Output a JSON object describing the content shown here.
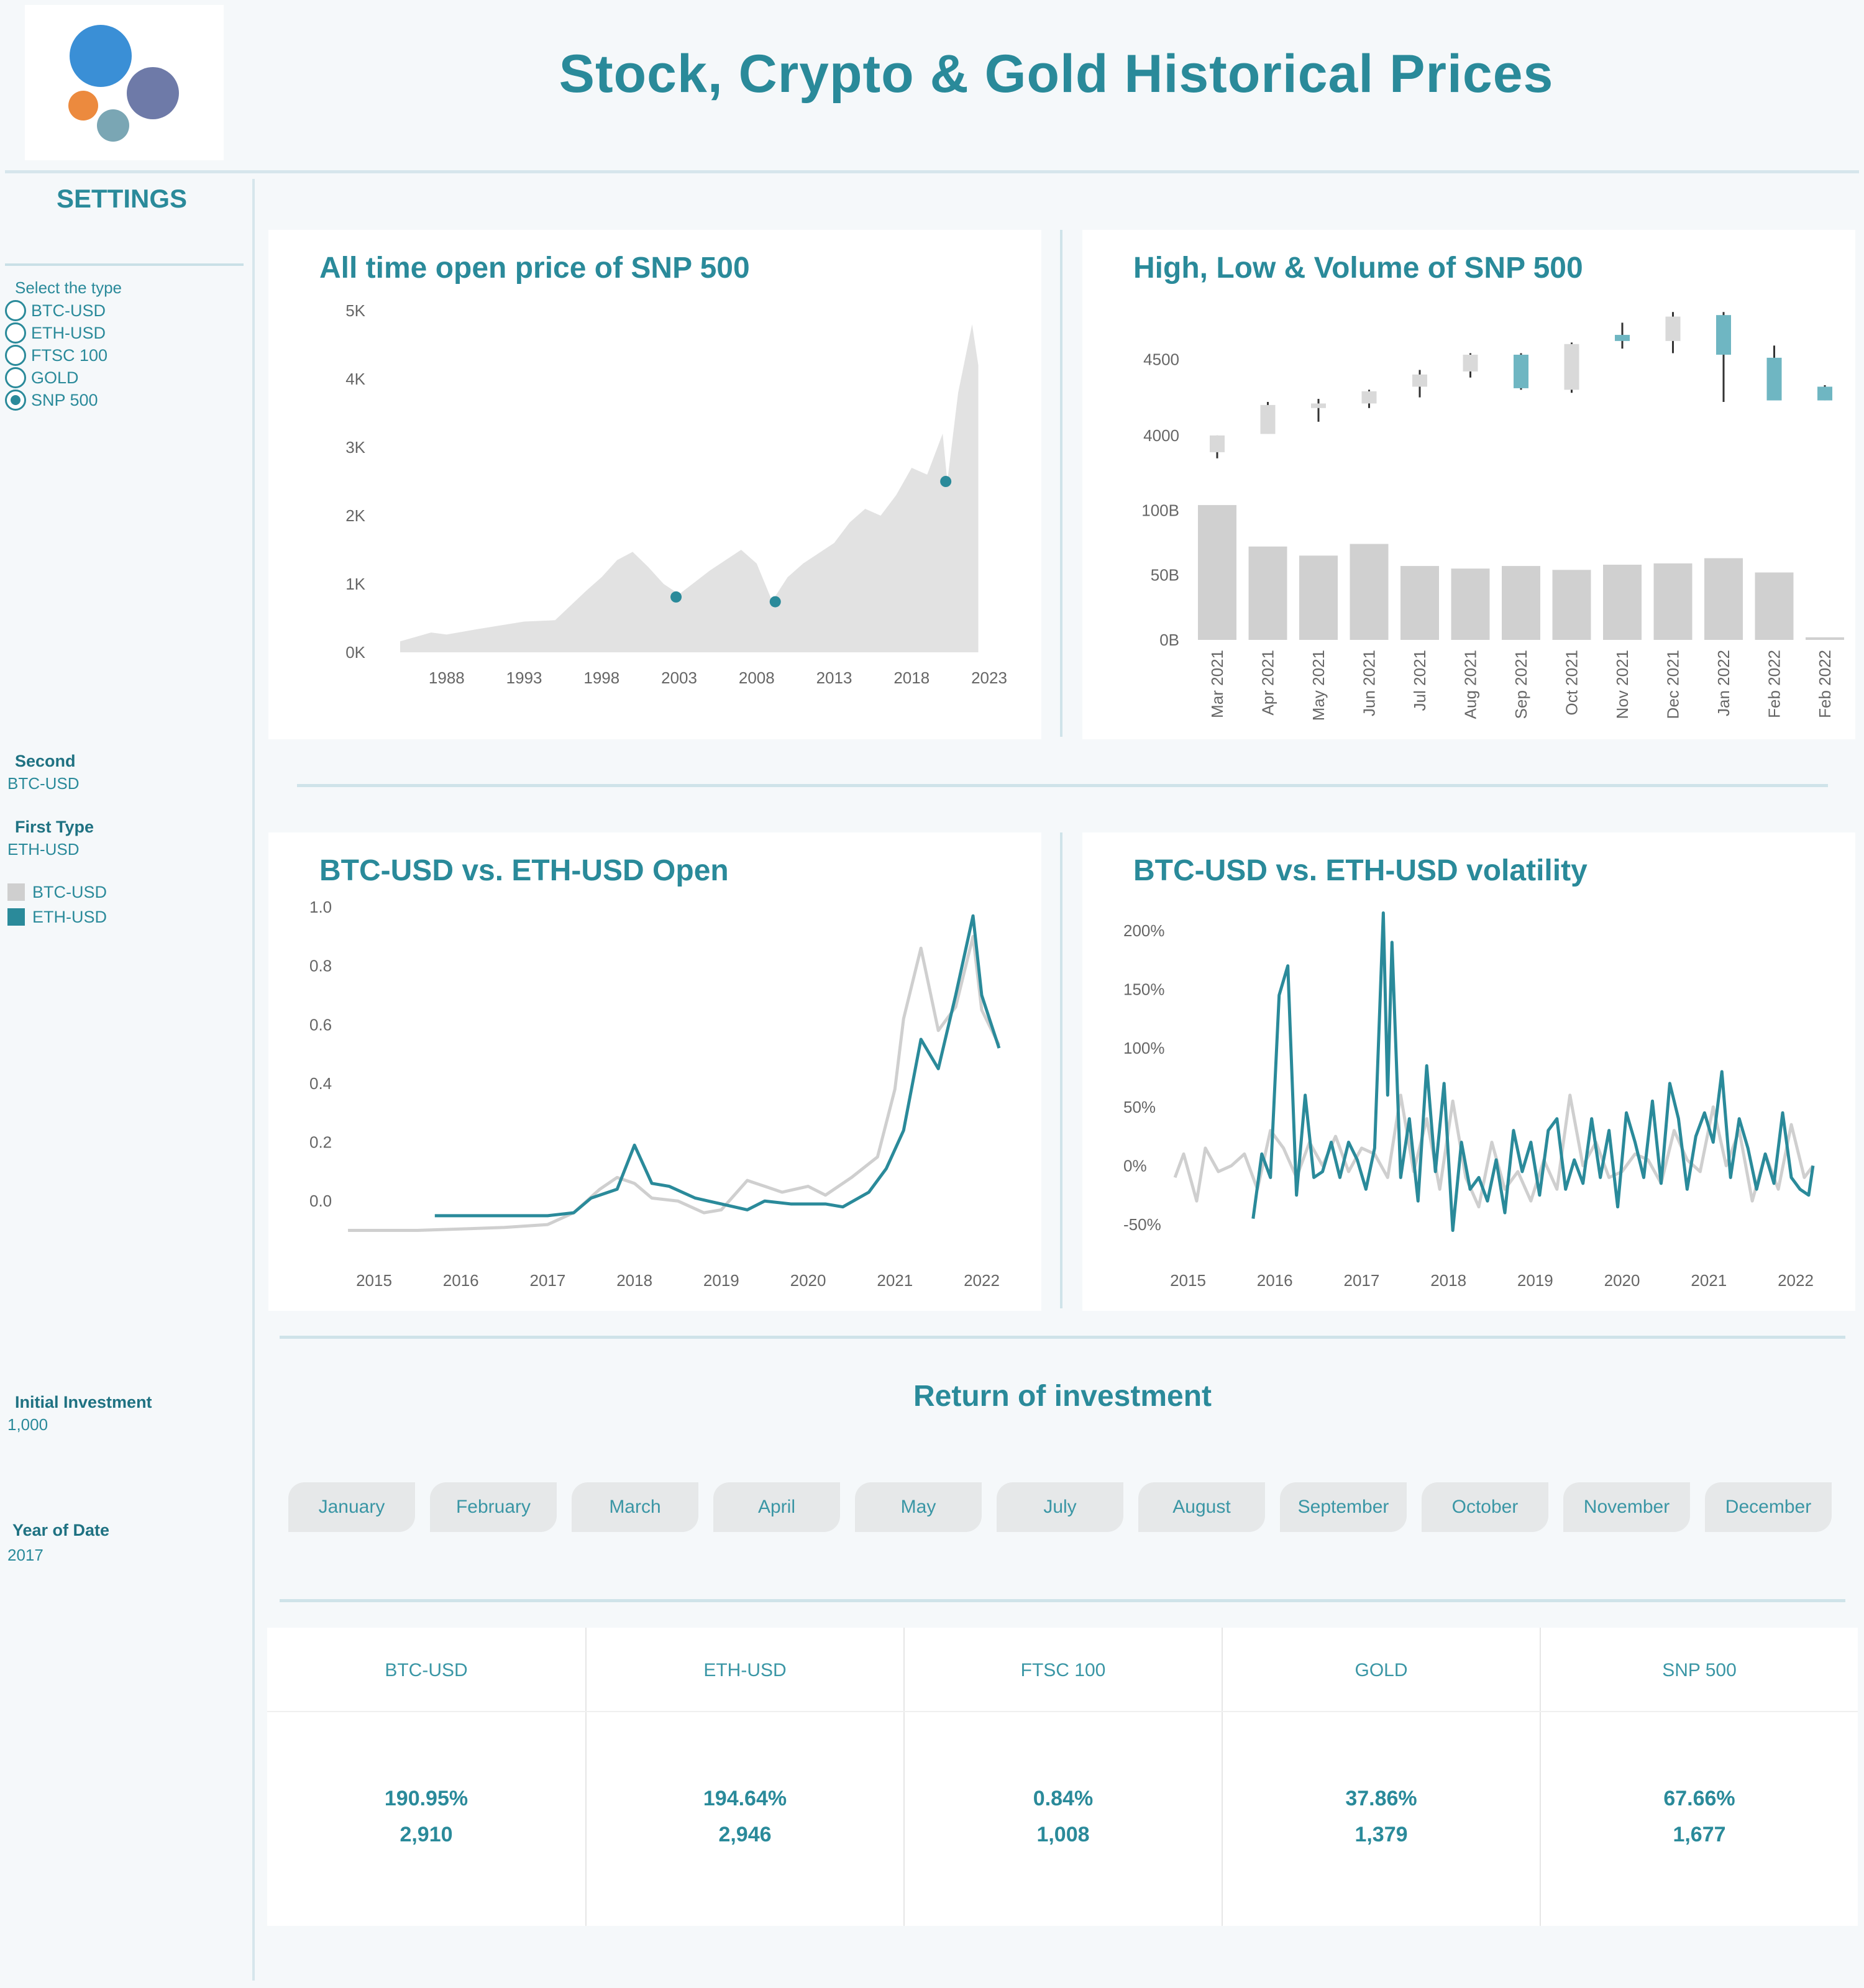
{
  "header": {
    "title": "Stock, Crypto & Gold Historical Prices",
    "logo_colors": [
      "#3a8fd6",
      "#6e7aa8",
      "#ec8a3e",
      "#7aa6b4"
    ]
  },
  "sidebar": {
    "settings_label": "SETTINGS",
    "type_prompt": "Select the type",
    "types": [
      {
        "label": "BTC-USD",
        "selected": false
      },
      {
        "label": "ETH-USD",
        "selected": false
      },
      {
        "label": "FTSC 100",
        "selected": false
      },
      {
        "label": "GOLD",
        "selected": false
      },
      {
        "label": "SNP 500",
        "selected": true
      }
    ],
    "second_label": "Second",
    "second_value": "BTC-USD",
    "first_type_label": "First Type",
    "first_type_value": "ETH-USD",
    "legend": [
      {
        "label": "BTC-USD",
        "color": "#cfcfcf"
      },
      {
        "label": "ETH-USD",
        "color": "#2a8a9a"
      }
    ],
    "initial_investment_label": "Initial Investment",
    "initial_investment_value": "1,000",
    "year_label": "Year of Date",
    "year_value": "2017"
  },
  "charts": {
    "open_title": "All time open price of  SNP 500",
    "hlv_title": "High, Low & Volume of SNP 500",
    "compare_title": "BTC-USD vs. ETH-USD Open",
    "volatility_title": "BTC-USD vs. ETH-USD volatility"
  },
  "chart_data": [
    {
      "type": "area",
      "title": "All time open price of  SNP 500",
      "x_ticks": [
        "1988",
        "1993",
        "1998",
        "2003",
        "2008",
        "2013",
        "2018",
        "2023"
      ],
      "y_ticks": [
        "0K",
        "1K",
        "2K",
        "3K",
        "4K",
        "5K"
      ],
      "ylim": [
        0,
        5000
      ],
      "x": [
        1985,
        1987,
        1988,
        1990,
        1993,
        1995,
        1997,
        1998,
        1999,
        2000,
        2001,
        2002,
        2003,
        2005,
        2007,
        2008,
        2009,
        2010,
        2011,
        2013,
        2014,
        2015,
        2016,
        2017,
        2018,
        2019,
        2020,
        2020.3,
        2021,
        2021.9,
        2022.3
      ],
      "values": [
        160,
        290,
        260,
        340,
        450,
        470,
        900,
        1100,
        1350,
        1470,
        1250,
        1000,
        850,
        1200,
        1500,
        1300,
        750,
        1100,
        1300,
        1600,
        1900,
        2100,
        2000,
        2300,
        2700,
        2600,
        3200,
        2500,
        3800,
        4800,
        4200
      ],
      "highlight_points": [
        {
          "x": 2002.8,
          "y": 810
        },
        {
          "x": 2009.2,
          "y": 740
        },
        {
          "x": 2020.2,
          "y": 2500
        }
      ],
      "colors": {
        "area": "#e2e2e2",
        "point": "#2a8a9a"
      }
    },
    {
      "type": "candlestick+bar",
      "title": "High, Low & Volume of SNP 500",
      "categories": [
        "Mar 2021",
        "Apr 2021",
        "May 2021",
        "Jun 2021",
        "Jul 2021",
        "Aug 2021",
        "Sep 2021",
        "Oct 2021",
        "Nov 2021",
        "Dec 2021",
        "Jan 2022",
        "Feb 2022",
        "Feb 2022"
      ],
      "price_ticks": [
        "4000",
        "4500"
      ],
      "price_ylim": [
        3800,
        4860
      ],
      "candles": [
        {
          "open": 3890,
          "close": 4000,
          "high": 4000,
          "low": 3850,
          "up": true
        },
        {
          "open": 4010,
          "close": 4200,
          "high": 4220,
          "low": 4010,
          "up": true
        },
        {
          "open": 4180,
          "close": 4210,
          "high": 4240,
          "low": 4090,
          "up": true
        },
        {
          "open": 4210,
          "close": 4290,
          "high": 4300,
          "low": 4180,
          "up": true
        },
        {
          "open": 4320,
          "close": 4400,
          "high": 4430,
          "low": 4250,
          "up": true
        },
        {
          "open": 4420,
          "close": 4530,
          "high": 4540,
          "low": 4380,
          "up": true
        },
        {
          "open": 4310,
          "close": 4530,
          "high": 4540,
          "low": 4300,
          "up": false
        },
        {
          "open": 4300,
          "close": 4600,
          "high": 4610,
          "low": 4280,
          "up": true
        },
        {
          "open": 4620,
          "close": 4660,
          "high": 4740,
          "low": 4570,
          "up": false
        },
        {
          "open": 4620,
          "close": 4780,
          "high": 4810,
          "low": 4540,
          "up": true
        },
        {
          "open": 4530,
          "close": 4790,
          "high": 4810,
          "low": 4220,
          "up": false
        },
        {
          "open": 4230,
          "close": 4510,
          "high": 4590,
          "low": 4230,
          "up": false
        },
        {
          "open": 4230,
          "close": 4320,
          "high": 4330,
          "low": 4230,
          "up": false
        }
      ],
      "volume_ticks": [
        "0B",
        "50B",
        "100B"
      ],
      "volume_ylim": [
        0,
        115
      ],
      "volume": [
        104,
        72,
        65,
        74,
        57,
        55,
        57,
        54,
        58,
        59,
        63,
        52,
        2
      ],
      "colors": {
        "up": "#d9d9d9",
        "down": "#6fb6c2",
        "wick": "#333333",
        "volume": "#d0d0d0"
      }
    },
    {
      "type": "line",
      "title": "BTC-USD vs. ETH-USD Open",
      "x_ticks": [
        "2015",
        "2016",
        "2017",
        "2018",
        "2019",
        "2020",
        "2021",
        "2022"
      ],
      "y_ticks": [
        "0.0",
        "0.2",
        "0.4",
        "0.6",
        "0.8",
        "1.0"
      ],
      "ylim": [
        -0.12,
        1.0
      ],
      "series": [
        {
          "name": "BTC-USD",
          "color": "#cfcfcf",
          "x": [
            2014.7,
            2015.5,
            2016.5,
            2017.0,
            2017.3,
            2017.6,
            2017.8,
            2018.0,
            2018.2,
            2018.5,
            2018.8,
            2019.0,
            2019.3,
            2019.5,
            2019.7,
            2020.0,
            2020.2,
            2020.5,
            2020.8,
            2021.0,
            2021.1,
            2021.3,
            2021.5,
            2021.7,
            2021.9,
            2022.0,
            2022.2
          ],
          "values": [
            -0.1,
            -0.1,
            -0.09,
            -0.08,
            -0.04,
            0.04,
            0.08,
            0.06,
            0.01,
            0.0,
            -0.04,
            -0.03,
            0.07,
            0.05,
            0.03,
            0.05,
            0.02,
            0.08,
            0.15,
            0.38,
            0.62,
            0.86,
            0.58,
            0.66,
            0.9,
            0.65,
            0.53
          ]
        },
        {
          "name": "ETH-USD",
          "color": "#2a8a9a",
          "x": [
            2015.7,
            2016.5,
            2017.0,
            2017.3,
            2017.5,
            2017.8,
            2018.0,
            2018.2,
            2018.4,
            2018.7,
            2019.0,
            2019.3,
            2019.5,
            2019.8,
            2020.0,
            2020.2,
            2020.4,
            2020.7,
            2020.9,
            2021.1,
            2021.3,
            2021.5,
            2021.7,
            2021.9,
            2022.0,
            2022.2
          ],
          "values": [
            -0.05,
            -0.05,
            -0.05,
            -0.04,
            0.01,
            0.04,
            0.19,
            0.06,
            0.05,
            0.01,
            -0.01,
            -0.03,
            0.0,
            -0.01,
            -0.01,
            -0.01,
            -0.02,
            0.03,
            0.11,
            0.24,
            0.55,
            0.45,
            0.7,
            0.97,
            0.7,
            0.52
          ]
        }
      ]
    },
    {
      "type": "line",
      "title": "BTC-USD vs. ETH-USD volatility",
      "x_ticks": [
        "2015",
        "2016",
        "2017",
        "2018",
        "2019",
        "2020",
        "2021",
        "2022"
      ],
      "y_ticks": [
        "-50%",
        "0%",
        "50%",
        "100%",
        "150%",
        "200%"
      ],
      "ylim": [
        -60,
        220
      ],
      "series": [
        {
          "name": "BTC-USD",
          "color": "#cfcfcf",
          "x": [
            2014.85,
            2014.95,
            2015.1,
            2015.2,
            2015.35,
            2015.5,
            2015.65,
            2015.8,
            2015.95,
            2016.1,
            2016.25,
            2016.4,
            2016.55,
            2016.7,
            2016.85,
            2017.0,
            2017.15,
            2017.3,
            2017.45,
            2017.6,
            2017.75,
            2017.9,
            2018.05,
            2018.2,
            2018.35,
            2018.5,
            2018.65,
            2018.8,
            2018.95,
            2019.1,
            2019.25,
            2019.4,
            2019.55,
            2019.7,
            2019.85,
            2020.0,
            2020.15,
            2020.3,
            2020.45,
            2020.6,
            2020.75,
            2020.9,
            2021.05,
            2021.2,
            2021.35,
            2021.5,
            2021.65,
            2021.8,
            2021.95,
            2022.1,
            2022.2
          ],
          "values": [
            -10,
            10,
            -30,
            15,
            -5,
            0,
            10,
            -20,
            30,
            15,
            -10,
            20,
            0,
            25,
            -5,
            15,
            10,
            -10,
            60,
            -5,
            40,
            -20,
            55,
            -10,
            -35,
            20,
            -20,
            -5,
            -30,
            5,
            -20,
            60,
            0,
            20,
            -10,
            -5,
            10,
            5,
            -15,
            30,
            5,
            -5,
            50,
            0,
            30,
            -30,
            10,
            -20,
            35,
            -10,
            0
          ]
        },
        {
          "name": "ETH-USD",
          "color": "#2a8a9a",
          "x": [
            2015.75,
            2015.85,
            2015.95,
            2016.05,
            2016.15,
            2016.25,
            2016.35,
            2016.45,
            2016.55,
            2016.65,
            2016.75,
            2016.85,
            2016.95,
            2017.05,
            2017.15,
            2017.25,
            2017.3,
            2017.35,
            2017.45,
            2017.55,
            2017.65,
            2017.75,
            2017.85,
            2017.95,
            2018.05,
            2018.15,
            2018.25,
            2018.35,
            2018.45,
            2018.55,
            2018.65,
            2018.75,
            2018.85,
            2018.95,
            2019.05,
            2019.15,
            2019.25,
            2019.35,
            2019.45,
            2019.55,
            2019.65,
            2019.75,
            2019.85,
            2019.95,
            2020.05,
            2020.15,
            2020.25,
            2020.35,
            2020.45,
            2020.55,
            2020.65,
            2020.75,
            2020.85,
            2020.95,
            2021.05,
            2021.15,
            2021.25,
            2021.35,
            2021.45,
            2021.55,
            2021.65,
            2021.75,
            2021.85,
            2021.95,
            2022.05,
            2022.15,
            2022.2
          ],
          "values": [
            -45,
            10,
            -10,
            145,
            170,
            -25,
            60,
            -10,
            -5,
            20,
            -10,
            20,
            5,
            -20,
            15,
            215,
            60,
            190,
            -10,
            40,
            -30,
            85,
            -5,
            70,
            -55,
            20,
            -20,
            -10,
            -30,
            5,
            -40,
            30,
            -5,
            20,
            -25,
            30,
            40,
            -20,
            5,
            -15,
            40,
            -10,
            30,
            -35,
            45,
            20,
            -10,
            55,
            -15,
            70,
            40,
            -20,
            25,
            45,
            20,
            80,
            -10,
            40,
            15,
            -20,
            10,
            -15,
            45,
            -10,
            -20,
            -25,
            0
          ]
        }
      ]
    }
  ],
  "roi": {
    "title": "Return of investment",
    "months": [
      "January",
      "February",
      "March",
      "April",
      "May",
      "July",
      "August",
      "September",
      "October",
      "November",
      "December"
    ],
    "assets": [
      {
        "name": "BTC-USD",
        "pct": "190.95%",
        "value": "2,910"
      },
      {
        "name": "ETH-USD",
        "pct": "194.64%",
        "value": "2,946"
      },
      {
        "name": "FTSC 100",
        "pct": "0.84%",
        "value": "1,008"
      },
      {
        "name": "GOLD",
        "pct": "37.86%",
        "value": "1,379"
      },
      {
        "name": "SNP 500",
        "pct": "67.66%",
        "value": "1,677"
      }
    ]
  }
}
